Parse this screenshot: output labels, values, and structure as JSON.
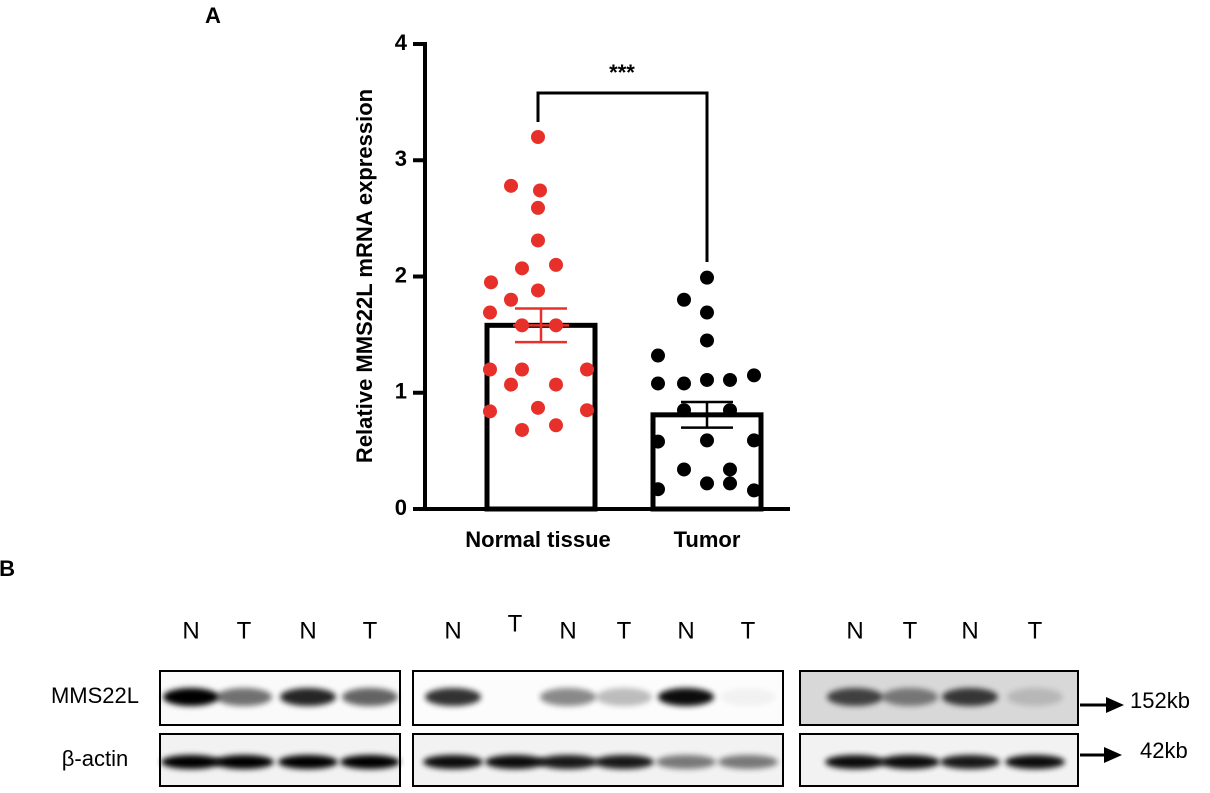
{
  "panel_labels": [
    "A",
    "B"
  ],
  "chart_data": {
    "type": "bar",
    "y_label": "Relative MMS22L mRNA expression",
    "categories": [
      "Normal tissue",
      "Tumor"
    ],
    "values": [
      1.58,
      0.81
    ],
    "errors": [
      0.145,
      0.11
    ],
    "bar_color": "#000000",
    "points": [
      {
        "color": "#e8302a",
        "values": [
          3.2,
          2.78,
          2.74,
          2.59,
          2.31,
          1.95,
          2.07,
          2.1,
          1.69,
          1.8,
          1.88,
          1.58,
          1.58,
          1.2,
          1.2,
          1.2,
          1.07,
          1.07,
          0.87,
          0.84,
          0.85,
          0.68,
          0.72
        ]
      },
      {
        "color": "#000000",
        "values": [
          1.99,
          1.8,
          1.69,
          1.45,
          1.32,
          1.15,
          1.11,
          1.08,
          1.08,
          1.11,
          0.85,
          0.85,
          0.58,
          0.59,
          0.59,
          0.34,
          0.34,
          0.17,
          0.22,
          0.22,
          0.16
        ]
      }
    ],
    "annotation": "***",
    "ylim": [
      0,
      4
    ],
    "yticks": [
      0,
      1,
      2,
      3,
      4
    ]
  },
  "blot": {
    "panels": [
      {
        "lanes": [
          "N",
          "T",
          "N",
          "T"
        ]
      },
      {
        "lanes": [
          "N",
          "T",
          "N",
          "T",
          "N",
          "T"
        ]
      },
      {
        "lanes": [
          "N",
          "T",
          "N",
          "T"
        ]
      }
    ],
    "rows": [
      "MMS22L",
      "β-actin"
    ],
    "sizes": [
      "152kb",
      "42kb"
    ]
  }
}
